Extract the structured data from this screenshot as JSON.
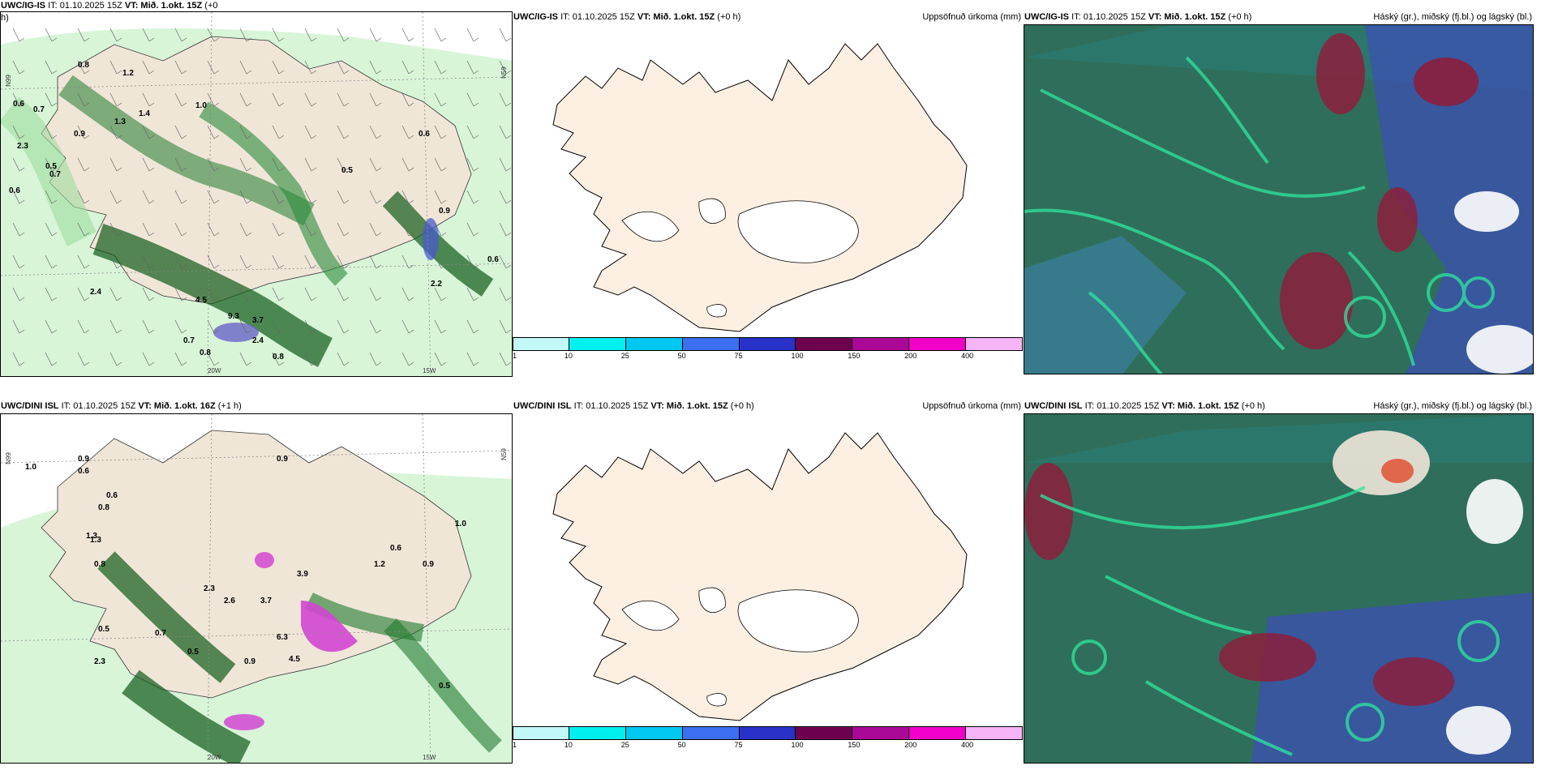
{
  "panels": [
    {
      "model": "UWC/IG-IS",
      "it_label": "IT: 01.10.2025 15Z",
      "vt_label": "VT: Mið. 1.okt. 15Z",
      "lead": "(+0",
      "lead2": "h)",
      "field": "",
      "kind": "precip-wind"
    },
    {
      "model": "UWC/IG-IS",
      "it_label": "IT: 01.10.2025 15Z",
      "vt_label": "VT: Mið. 1.okt. 15Z",
      "lead": "(+0 h)",
      "field": "Uppsöfnuð úrkoma (mm)",
      "kind": "accum"
    },
    {
      "model": "UWC/IG-IS",
      "it_label": "IT: 01.10.2025 15Z",
      "vt_label": "VT: Mið. 1.okt. 15Z",
      "lead": "(+0 h)",
      "field": "Háský (gr.), miðský (fj.bl.) og lágský (bl.)",
      "kind": "cloud"
    },
    {
      "model": "UWC/DINI ISL",
      "it_label": "IT: 01.10.2025 15Z",
      "vt_label": "VT: Mið. 1.okt. 16Z",
      "lead": "(+1 h)",
      "field": "",
      "kind": "precip-wind"
    },
    {
      "model": "UWC/DINI ISL",
      "it_label": "IT: 01.10.2025 15Z",
      "vt_label": "VT: Mið. 1.okt. 15Z",
      "lead": "(+0 h)",
      "field": "Uppsöfnuð úrkoma (mm)",
      "kind": "accum"
    },
    {
      "model": "UWC/DINI ISL",
      "it_label": "IT: 01.10.2025 15Z",
      "vt_label": "VT: Mið. 1.okt. 15Z",
      "lead": "(+0 h)",
      "field": "Háský (gr.), miðský (fj.bl.) og lágský (bl.)",
      "kind": "cloud"
    }
  ],
  "colorbar": {
    "ticks": [
      "1",
      "10",
      "25",
      "50",
      "75",
      "100",
      "150",
      "200",
      "400"
    ],
    "colors": [
      "#c2f8f8",
      "#00f0f0",
      "#00c8f0",
      "#3c6ef0",
      "#2832c8",
      "#6e0050",
      "#aa0896",
      "#f000c8",
      "#f5b4f5"
    ]
  },
  "grid_labels": {
    "lat": "N99",
    "lon1": "20W",
    "lon2": "15W",
    "lat2": "N29",
    "lat3": "N59"
  },
  "precip_values_top": [
    "0.8",
    "0.6",
    "0.7",
    "1.3",
    "0.9",
    "2.3",
    "0.5",
    "1.4",
    "0.7",
    "0.6",
    "2.4",
    "4.5",
    "9.3",
    "3.7",
    "2.4",
    "0.8",
    "0.7",
    "0.8",
    "0.5",
    "0.6",
    "1.2",
    "0.9",
    "2.2",
    "1.0",
    "0.6"
  ],
  "precip_values_bottom": [
    "1.0",
    "0.9",
    "0.6",
    "1.3",
    "0.8",
    "0.5",
    "2.3",
    "3.9",
    "6.3",
    "0.6",
    "0.9",
    "2.3",
    "2.6",
    "0.5",
    "0.9",
    "4.5",
    "0.7",
    "1.2",
    "0.8",
    "0.6",
    "0.9",
    "3.7",
    "1.3",
    "0.5",
    "1.0"
  ],
  "colors": {
    "land": "#fdf0e2",
    "precip_light": "#c8f0c8",
    "precip_mid": "#5ab45a",
    "precip_dark": "#0a5a14",
    "cloud_base": "#2f6e5a",
    "cloud_mid": "#3c50b4",
    "cloud_high": "#8c1e3c",
    "cloud_edge": "#2ee6a0"
  }
}
